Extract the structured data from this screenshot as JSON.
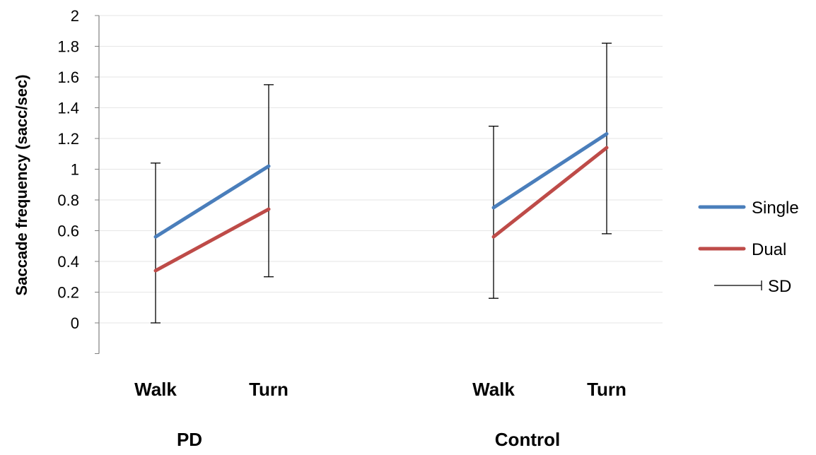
{
  "chart_data": {
    "type": "line",
    "ylabel": "Saccade frequency (sacc/sec)",
    "ylim": [
      -0.2,
      2
    ],
    "yticks": [
      "0",
      "0.2",
      "0.4",
      "0.6",
      "0.8",
      "1",
      "1.2",
      "1.4",
      "1.6",
      "1.8",
      "2"
    ],
    "grid": true,
    "legend_position": "right",
    "groups": [
      {
        "name": "PD",
        "categories": [
          "Walk",
          "Turn"
        ],
        "series": [
          {
            "name": "Single",
            "values": [
              0.56,
              1.02
            ],
            "color": "#4a7ebb"
          },
          {
            "name": "Dual",
            "values": [
              0.34,
              0.74
            ],
            "color": "#be4b48"
          }
        ],
        "sd_bars": [
          {
            "category": "Walk",
            "low": 0.0,
            "high": 1.04
          },
          {
            "category": "Turn",
            "low": 0.3,
            "high": 1.55
          }
        ]
      },
      {
        "name": "Control",
        "categories": [
          "Walk",
          "Turn"
        ],
        "series": [
          {
            "name": "Single",
            "values": [
              0.75,
              1.23
            ],
            "color": "#4a7ebb"
          },
          {
            "name": "Dual",
            "values": [
              0.56,
              1.14
            ],
            "color": "#be4b48"
          }
        ],
        "sd_bars": [
          {
            "category": "Walk",
            "low": 0.16,
            "high": 1.28
          },
          {
            "category": "Turn",
            "low": 0.58,
            "high": 1.82
          }
        ]
      }
    ],
    "legend": [
      {
        "label": "Single",
        "kind": "line",
        "color": "#4a7ebb"
      },
      {
        "label": "Dual",
        "kind": "line",
        "color": "#be4b48"
      },
      {
        "label": "SD",
        "kind": "errorbar",
        "color": "#000000"
      }
    ]
  }
}
